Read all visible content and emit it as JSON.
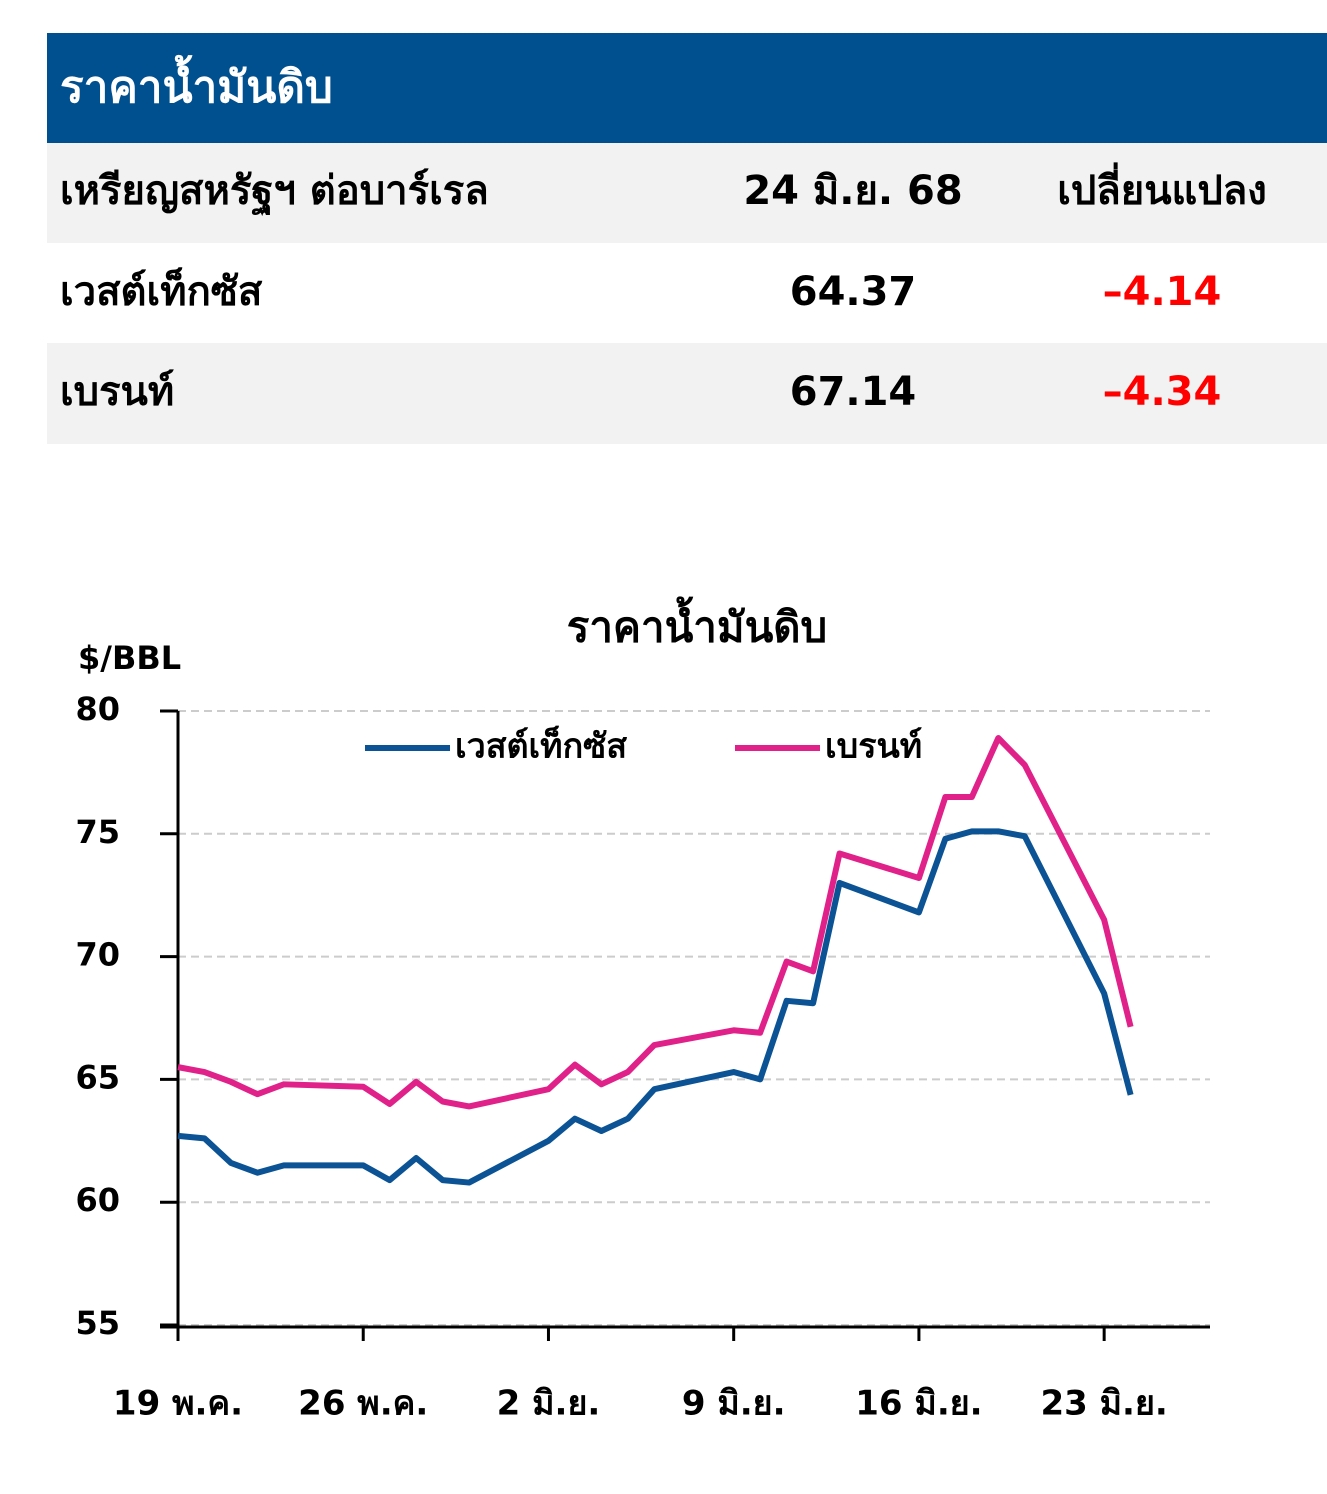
{
  "table": {
    "title": "ราคาน้ำมันดิบ",
    "header": [
      "เหรียญสหรัฐฯ ต่อบาร์เรล",
      "24 มิ.ย. 68",
      "เปลี่ยนแปลง"
    ],
    "rows": [
      [
        "เวสต์เท็กซัส",
        "64.37",
        "–4.14"
      ],
      [
        "เบรนท์",
        "67.14",
        "–4.34"
      ]
    ]
  },
  "chart_data": {
    "type": "line",
    "title": "ราคาน้ำมันดิบ",
    "y_label": "$/BBL",
    "x": [
      0,
      1,
      2,
      3,
      4,
      7,
      8,
      9,
      10,
      11,
      14,
      15,
      16,
      17,
      18,
      21,
      22,
      23,
      24,
      25,
      28,
      29,
      30,
      31,
      32,
      35,
      36
    ],
    "xlim": [
      0,
      39
    ],
    "xticks": [
      {
        "value": 0,
        "label": "19 พ.ค."
      },
      {
        "value": 7,
        "label": "26 พ.ค."
      },
      {
        "value": 14,
        "label": "2 มิ.ย."
      },
      {
        "value": 21,
        "label": "9 มิ.ย."
      },
      {
        "value": 28,
        "label": "16 มิ.ย."
      },
      {
        "value": 35,
        "label": "23 มิ.ย."
      }
    ],
    "ylim": [
      55,
      80
    ],
    "yticks": [
      55,
      60,
      65,
      70,
      75,
      80
    ],
    "grid": true,
    "legend": "top",
    "series": [
      {
        "name": "เวสต์เท็กซัส",
        "color": "#0b5394",
        "values": [
          62.7,
          62.6,
          61.6,
          61.2,
          61.5,
          61.5,
          60.9,
          61.8,
          60.9,
          60.8,
          62.5,
          63.4,
          62.9,
          63.4,
          64.6,
          65.3,
          65.0,
          68.2,
          68.1,
          73.0,
          71.8,
          74.8,
          75.1,
          75.1,
          74.9,
          68.5,
          64.37
        ]
      },
      {
        "name": "เบรนท์",
        "color": "#e0218a",
        "values": [
          65.5,
          65.3,
          64.9,
          64.4,
          64.8,
          64.7,
          64.0,
          64.9,
          64.1,
          63.9,
          64.6,
          65.6,
          64.8,
          65.3,
          66.4,
          67.0,
          66.9,
          69.8,
          69.4,
          74.2,
          73.2,
          76.5,
          76.5,
          78.9,
          77.8,
          71.5,
          67.14
        ]
      }
    ]
  }
}
